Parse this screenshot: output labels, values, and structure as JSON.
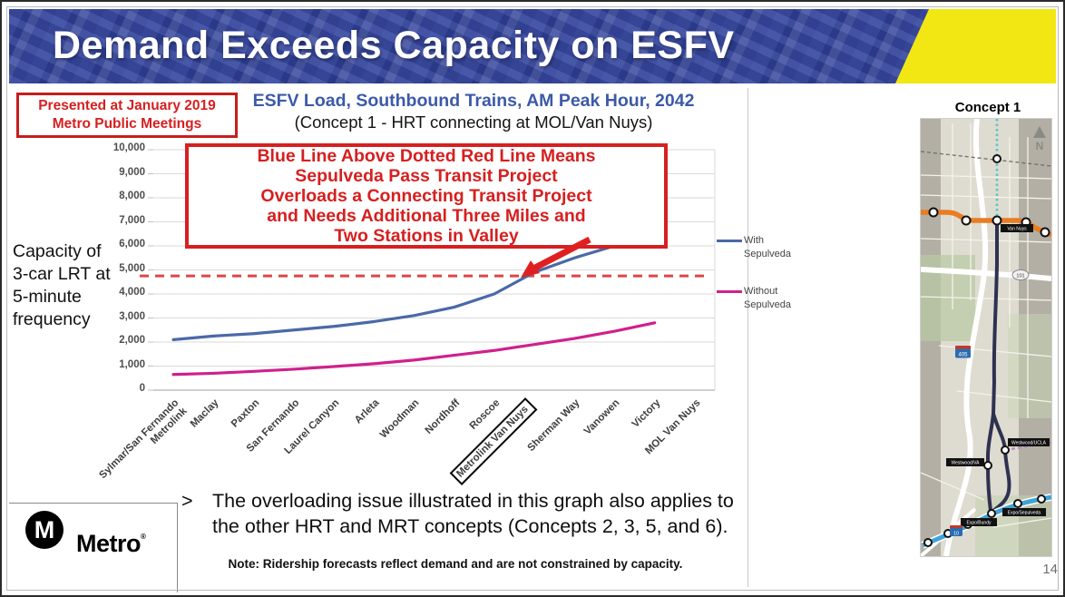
{
  "slide": {
    "title": "Demand Exceeds Capacity on ESFV",
    "page_number": "14",
    "presented_badge_lines": [
      "Presented at January 2019",
      "Metro Public Meetings"
    ]
  },
  "chart": {
    "title": "ESFV Load, Southbound Trains, AM Peak Hour, 2042",
    "subtitle": "(Concept 1 - HRT connecting at MOL/Van Nuys)",
    "annotation_lines": [
      "Blue Line Above Dotted Red Line Means",
      "Sepulveda Pass Transit Project",
      "Overloads a Connecting Transit Project",
      "and Needs Additional Three Miles and",
      "Two Stations in Valley"
    ],
    "capacity_label_lines": [
      "Capacity of",
      "3-car LRT at",
      "5-minute",
      "frequency"
    ]
  },
  "chart_data": {
    "type": "line",
    "title": "ESFV Load, Southbound Trains, AM Peak Hour, 2042",
    "subtitle": "(Concept 1 - HRT connecting at MOL/Van Nuys)",
    "categories": [
      "Sylmar/San Fernando\nMetrolink",
      "Maclay",
      "Paxton",
      "San Fernando",
      "Laurel Canyon",
      "Arleta",
      "Woodman",
      "Nordhoff",
      "Roscoe",
      "Metrolink Van Nuys",
      "Sherman Way",
      "Vanowen",
      "Victory",
      "MOL Van Nuys"
    ],
    "series": [
      {
        "name": "With Sepulveda",
        "color": "#4b69a8",
        "values": [
          2100,
          2250,
          2350,
          2500,
          2650,
          2850,
          3100,
          3450,
          4000,
          4900,
          5500,
          6000,
          6550,
          null
        ]
      },
      {
        "name": "Without Sepulveda",
        "color": "#d0208c",
        "values": [
          650,
          700,
          780,
          870,
          980,
          1100,
          1250,
          1450,
          1650,
          1900,
          2150,
          2450,
          2800,
          null
        ]
      }
    ],
    "ylim": [
      0,
      10000
    ],
    "ytick_step": 1000,
    "grid": true,
    "legend_position": "right",
    "boxed_category": "Metrolink Van Nuys",
    "capacity_line": {
      "value": 4750,
      "color": "#d94848",
      "style": "dashed",
      "label": "Capacity of 3-car LRT at 5-minute frequency"
    }
  },
  "bullet": {
    "marker": ">",
    "lines": [
      "The overloading issue illustrated in this graph also applies to",
      "the other HRT and MRT concepts (Concepts 2, 3, 5, and 6)."
    ]
  },
  "note": "Note: Ridership forecasts reflect demand and are not constrained by capacity.",
  "logo": {
    "m": "M",
    "text": "Metro",
    "reg": "®"
  },
  "map": {
    "title": "Concept 1",
    "north": "N",
    "stations": {
      "van_nuys": "Van Nuys",
      "westwood_ucla": "Westwood/UCLA",
      "westwood_va": "Westwood/VA",
      "expo_sepulveda": "Expo/Sepulveda",
      "expo_bundy": "Expo/Bundy"
    },
    "shields": {
      "i405": "405",
      "us101": "101",
      "i10": "10"
    }
  }
}
